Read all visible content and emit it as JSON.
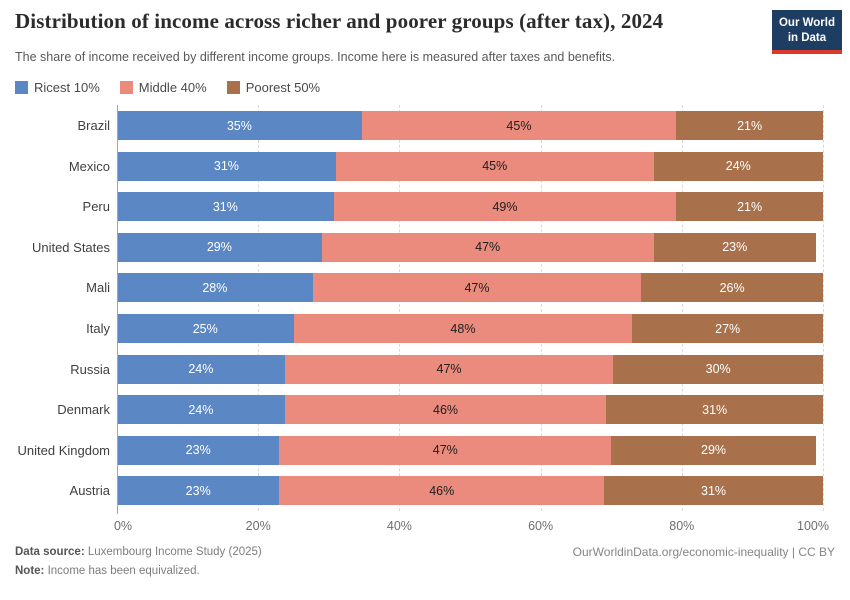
{
  "header": {
    "title": "Distribution of income across richer and poorer groups (after tax), 2024",
    "logo": {
      "line1": "Our World",
      "line2": "in Data",
      "bg_color": "#1d3d63",
      "accent_color": "#d93a2b"
    }
  },
  "subtitle": "The share of income received by different income groups. Income here is measured after taxes and benefits.",
  "legend": [
    {
      "label": "Ricest 10%",
      "color": "#5b87c5"
    },
    {
      "label": "Middle 40%",
      "color": "#ea8b7d"
    },
    {
      "label": "Poorest 50%",
      "color": "#a9714b"
    }
  ],
  "chart_data": {
    "type": "bar",
    "orientation": "horizontal",
    "stacked": true,
    "grid": true,
    "xlim": [
      0,
      100
    ],
    "value_suffix": "%",
    "x_ticks": [
      "0%",
      "20%",
      "40%",
      "60%",
      "80%",
      "100%"
    ],
    "categories": [
      "Brazil",
      "Mexico",
      "Peru",
      "United States",
      "Mali",
      "Italy",
      "Russia",
      "Denmark",
      "United Kingdom",
      "Austria"
    ],
    "series": [
      {
        "name": "Ricest 10%",
        "color": "#5b87c5",
        "label_color": "#ffffff",
        "values": [
          35,
          31,
          31,
          29,
          28,
          25,
          24,
          24,
          23,
          23
        ]
      },
      {
        "name": "Middle 40%",
        "color": "#ea8b7d",
        "label_color": "#202020",
        "values": [
          45,
          45,
          49,
          47,
          47,
          48,
          47,
          46,
          47,
          46
        ]
      },
      {
        "name": "Poorest 50%",
        "color": "#a9714b",
        "label_color": "#ffffff",
        "values": [
          21,
          24,
          21,
          23,
          26,
          27,
          30,
          31,
          29,
          31
        ]
      }
    ]
  },
  "footer": {
    "datasource_label": "Data source:",
    "datasource_value": " Luxembourg Income Study (2025)",
    "note_label": "Note:",
    "note_value": " Income has been equivalized.",
    "credit": "OurWorldinData.org/economic-inequality | CC BY"
  }
}
